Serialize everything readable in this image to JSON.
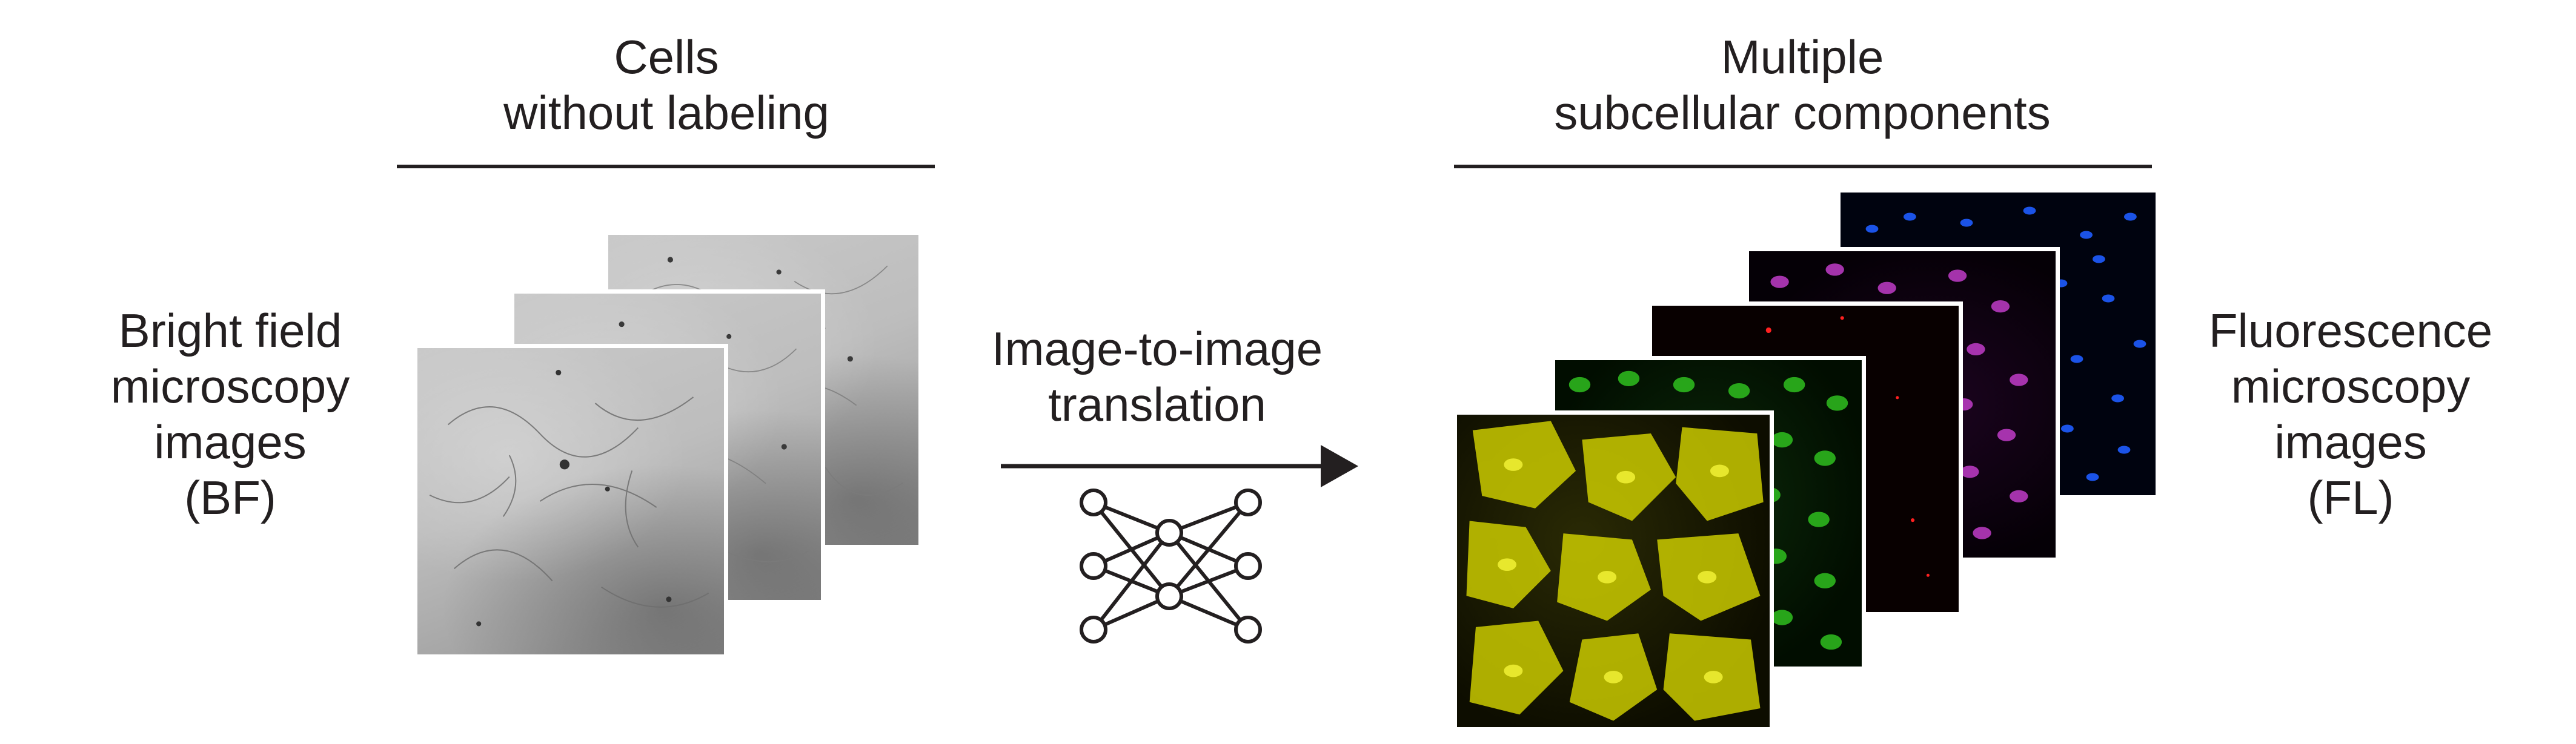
{
  "left_header": {
    "line1": "Cells",
    "line2": "without labeling"
  },
  "left_label": {
    "line1": "Bright field",
    "line2": "microscopy",
    "line3": "images",
    "line4": "(BF)"
  },
  "center_label": {
    "line1": "Image-to-image",
    "line2": "translation"
  },
  "right_header": {
    "line1": "Multiple",
    "line2": "subcellular components"
  },
  "right_label": {
    "line1": "Fluorescence",
    "line2": "microscopy",
    "line3": "images",
    "line4": "(FL)"
  },
  "icons": {
    "arrow": "right-arrow-icon",
    "network": "neural-network-icon"
  },
  "colors": {
    "text": "#231f20",
    "channel_yellow": "#d6d600",
    "channel_green": "#2fbf1f",
    "channel_red": "#ff2020",
    "channel_purple": "#c03cc8",
    "channel_blue": "#1e5cff"
  }
}
